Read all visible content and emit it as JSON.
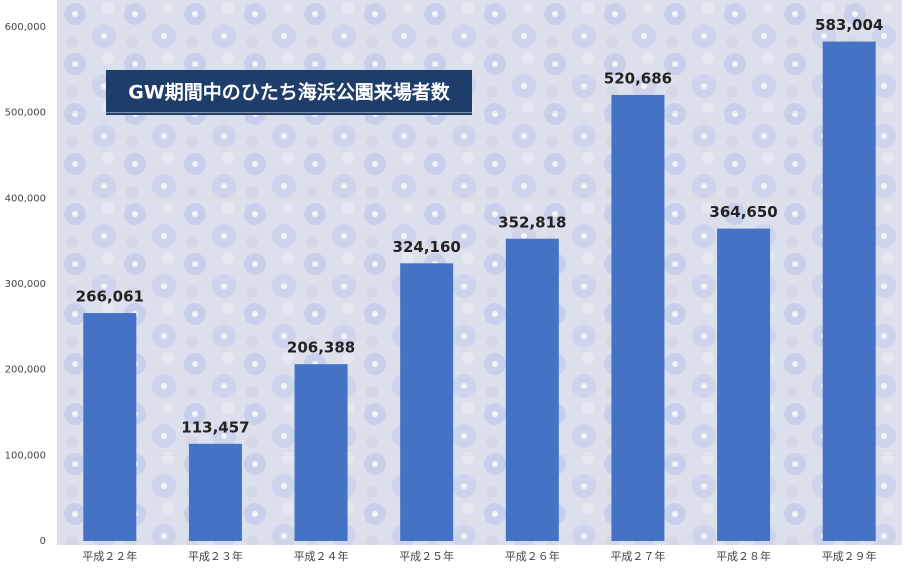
{
  "chart_data": {
    "type": "bar",
    "title": "GW期間中のひたち海浜公園来場者数",
    "categories": [
      "平成２２年",
      "平成２３年",
      "平成２４年",
      "平成２５年",
      "平成２６年",
      "平成２７年",
      "平成２８年",
      "平成２９年"
    ],
    "values": [
      266061,
      113457,
      206388,
      324160,
      352818,
      520686,
      364650,
      583004
    ],
    "value_labels": [
      "266,061",
      "113,457",
      "206,388",
      "324,160",
      "352,818",
      "520,686",
      "364,650",
      "583,004"
    ],
    "color": "#4472c4",
    "ylim": [
      0,
      600000
    ],
    "yticks": [
      0,
      {
        "value": 100000,
        "label": "100,000"
      },
      {
        "value": 200000,
        "label": "200,000"
      },
      {
        "value": 300000,
        "label": "300,000"
      },
      {
        "value": 400000,
        "label": "400,000"
      },
      {
        "value": 500000,
        "label": "500,000"
      },
      {
        "value": 600000,
        "label": "600,000"
      }
    ],
    "grid": true
  }
}
